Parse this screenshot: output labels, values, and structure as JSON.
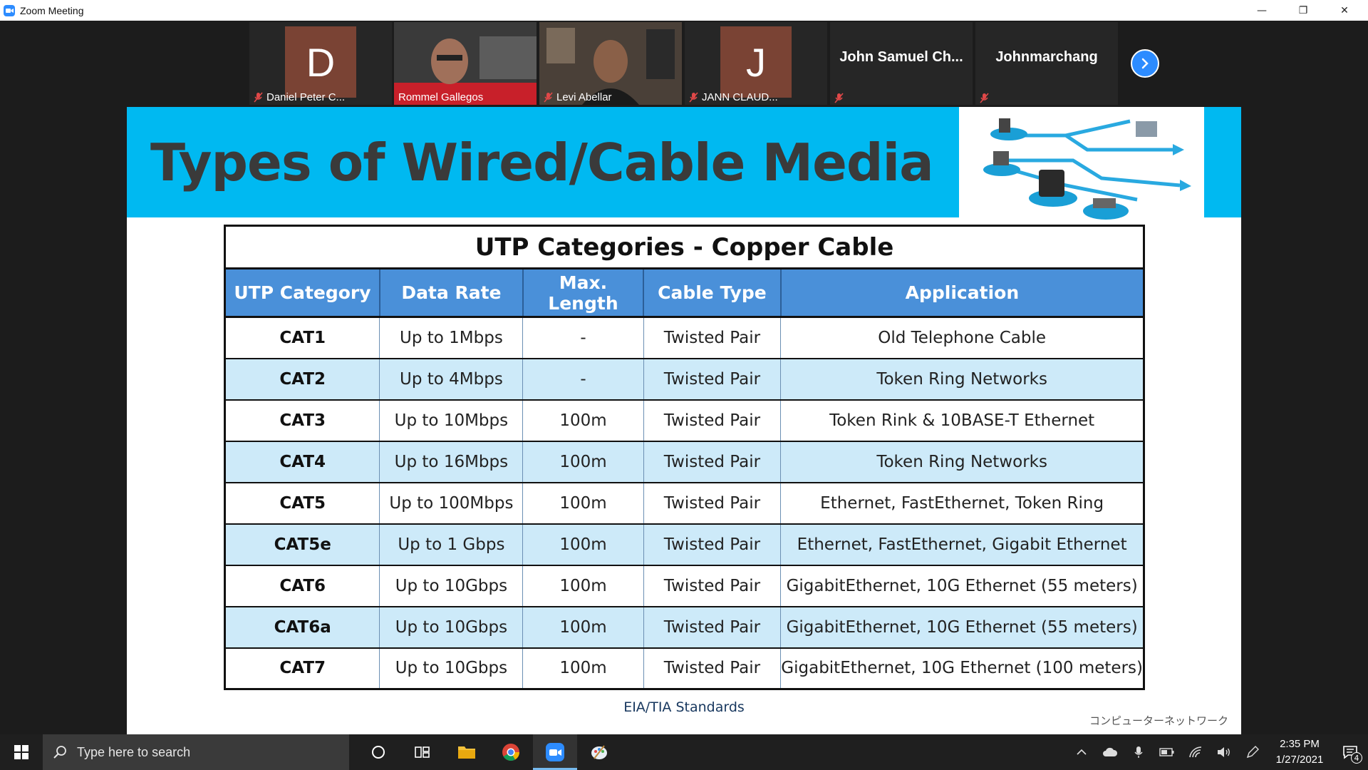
{
  "window": {
    "title": "Zoom Meeting",
    "controls": {
      "minimize": "—",
      "restore": "❐",
      "close": "✕"
    }
  },
  "participants": [
    {
      "name": "Daniel Peter C...",
      "initial": "D",
      "muted": true,
      "video": false
    },
    {
      "name": "Rommel Gallegos",
      "muted": false,
      "video": true,
      "active_speaker": true
    },
    {
      "name": "Levi Abellar",
      "muted": true,
      "video": true
    },
    {
      "name": "JANN CLAUD...",
      "initial": "J",
      "muted": true,
      "video": false
    },
    {
      "name": "John  Samuel  Ch...",
      "muted": true,
      "video": false
    },
    {
      "name": "Johnmarchang",
      "muted": true,
      "video": false
    }
  ],
  "gallery": {
    "next_icon": "chevron-right-icon"
  },
  "slide": {
    "title": "Types of Wired/Cable Media",
    "table": {
      "caption": "UTP Categories - Copper Cable",
      "columns": [
        "UTP Category",
        "Data Rate",
        "Max. Length",
        "Cable Type",
        "Application"
      ],
      "rows": [
        [
          "CAT1",
          "Up to 1Mbps",
          "-",
          "Twisted Pair",
          "Old Telephone Cable"
        ],
        [
          "CAT2",
          "Up to 4Mbps",
          "-",
          "Twisted Pair",
          "Token Ring Networks"
        ],
        [
          "CAT3",
          "Up to 10Mbps",
          "100m",
          "Twisted Pair",
          "Token Rink & 10BASE-T Ethernet"
        ],
        [
          "CAT4",
          "Up to 16Mbps",
          "100m",
          "Twisted Pair",
          "Token Ring Networks"
        ],
        [
          "CAT5",
          "Up to 100Mbps",
          "100m",
          "Twisted Pair",
          "Ethernet, FastEthernet, Token Ring"
        ],
        [
          "CAT5e",
          "Up to 1 Gbps",
          "100m",
          "Twisted Pair",
          "Ethernet, FastEthernet, Gigabit Ethernet"
        ],
        [
          "CAT6",
          "Up to 10Gbps",
          "100m",
          "Twisted Pair",
          "GigabitEthernet, 10G Ethernet (55 meters)"
        ],
        [
          "CAT6a",
          "Up to 10Gbps",
          "100m",
          "Twisted Pair",
          "GigabitEthernet, 10G Ethernet (55 meters)"
        ],
        [
          "CAT7",
          "Up to 10Gbps",
          "100m",
          "Twisted Pair",
          "GigabitEthernet, 10G Ethernet (100 meters)"
        ]
      ]
    },
    "footer": "EIA/TIA Standards",
    "watermark": "コンピューターネットワーク",
    "colors": {
      "banner": "#00b9f1",
      "header": "#4a90d9",
      "alt_row": "#cdeaf9"
    }
  },
  "taskbar": {
    "search_placeholder": "Type here to search",
    "apps": [
      "cortana-icon",
      "task-view-icon",
      "file-explorer-icon",
      "chrome-icon",
      "zoom-icon",
      "paint-icon"
    ],
    "time": "2:35 PM",
    "date": "1/27/2021",
    "notification_count": "4"
  }
}
